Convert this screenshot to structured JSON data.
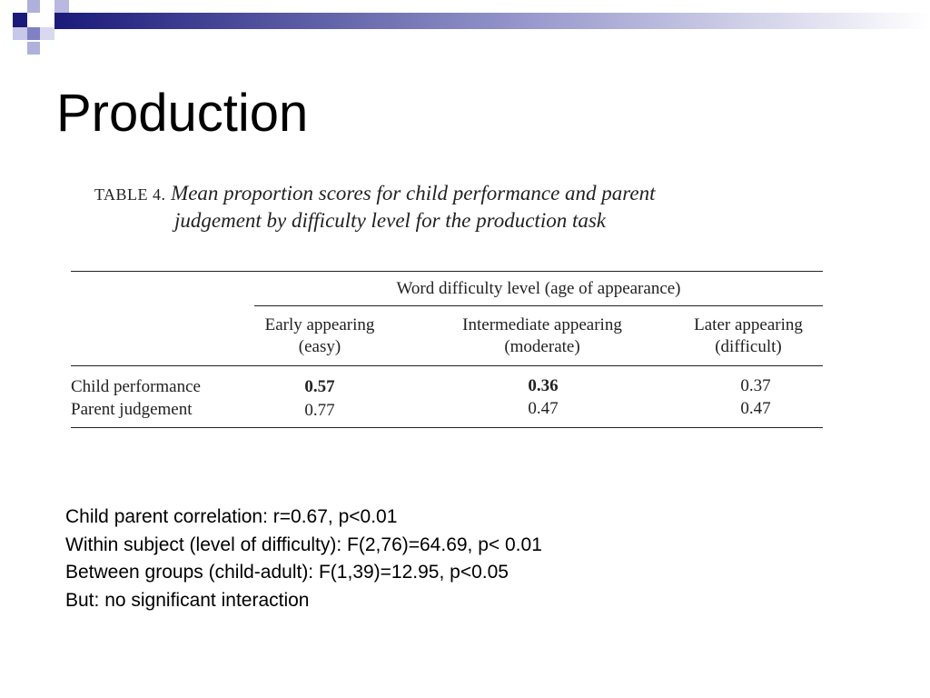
{
  "slide": {
    "title": "Production"
  },
  "table": {
    "caption_label": "TABLE 4.",
    "caption_line1": "Mean proportion scores for child performance and parent",
    "caption_line2": "judgement by difficulty level for the production task",
    "spanner": "Word difficulty level (age of appearance)",
    "columns": [
      {
        "line1": "Early appearing",
        "line2": "(easy)"
      },
      {
        "line1": "Intermediate appearing",
        "line2": "(moderate)"
      },
      {
        "line1": "Later appearing",
        "line2": "(difficult)"
      }
    ],
    "rows": [
      {
        "label": "Child performance",
        "values": [
          "0.57",
          "0.36",
          "0.37"
        ]
      },
      {
        "label": "Parent judgement",
        "values": [
          "0.77",
          "0.47",
          "0.47"
        ]
      }
    ]
  },
  "notes": [
    "Child parent correlation: r=0.67, p<0.01",
    "Within subject (level of difficulty): F(2,76)=64.69, p< 0.01",
    "Between groups (child-adult): F(1,39)=12.95, p<0.05",
    "But: no significant interaction"
  ],
  "colors": {
    "accent_dark": "#1a1a7a",
    "accent_mid": "#6b6bbd",
    "accent_light": "#b0b0dd"
  }
}
